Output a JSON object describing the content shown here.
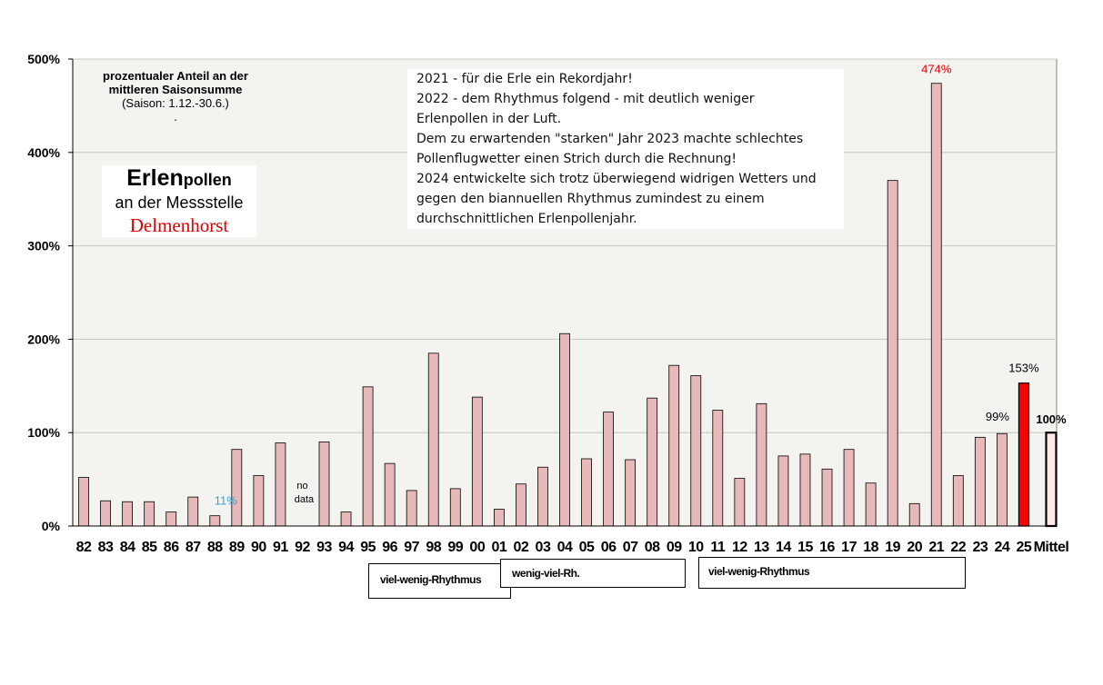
{
  "chart_data": {
    "type": "bar",
    "categories": [
      "82",
      "83",
      "84",
      "85",
      "86",
      "87",
      "88",
      "89",
      "90",
      "91",
      "92",
      "93",
      "94",
      "95",
      "96",
      "97",
      "98",
      "99",
      "00",
      "01",
      "02",
      "03",
      "04",
      "05",
      "06",
      "07",
      "08",
      "09",
      "10",
      "11",
      "12",
      "13",
      "14",
      "15",
      "16",
      "17",
      "18",
      "19",
      "20",
      "21",
      "22",
      "23",
      "24",
      "25",
      "Mittel"
    ],
    "values": [
      52,
      27,
      26,
      26,
      15,
      31,
      11,
      82,
      54,
      89,
      null,
      90,
      15,
      149,
      67,
      38,
      185,
      40,
      138,
      18,
      45,
      63,
      206,
      72,
      122,
      71,
      137,
      172,
      161,
      124,
      51,
      131,
      75,
      77,
      61,
      82,
      46,
      370,
      24,
      474,
      54,
      95,
      99,
      153,
      100
    ],
    "ylim": [
      0,
      500
    ],
    "yticks": [
      "0%",
      "100%",
      "200%",
      "300%",
      "400%",
      "500%"
    ],
    "grid": true,
    "colors": {
      "bar": "#e8b9b9",
      "highlight": "#ff0000",
      "mittel": "#ffe8e8",
      "plot_bg": "#f3f3ef",
      "grid": "#c8c8c0"
    },
    "data_labels": [
      {
        "category": "88",
        "text": "11%",
        "color": "#2aa8d8"
      },
      {
        "category": "24",
        "text": "99%",
        "color": "#000000"
      },
      {
        "category": "25",
        "text": "153%",
        "color": "#000000"
      },
      {
        "category": "21",
        "text": "474%",
        "color": "#e00000"
      },
      {
        "category": "Mittel",
        "text": "100%",
        "color": "#000000"
      }
    ],
    "no_data": {
      "category": "92",
      "line1": "no",
      "line2": "data"
    }
  },
  "info": {
    "line1": "prozentualer Anteil an der",
    "line2": "mittleren Saisonsumme",
    "line3": "(Saison: 1.12.-30.6.)",
    "line4": "."
  },
  "title": {
    "erlen": "Erlen",
    "pollen": "pollen",
    "sub": "an der Messstelle",
    "city": "Delmenhorst"
  },
  "notes": [
    "2021 - für die Erle ein Rekordjahr!",
    "2022 - dem Rhythmus folgend -  mit deutlich weniger",
    "Erlenpollen  in der Luft.",
    "Dem zu erwartenden  \"starken\" Jahr 2023 machte schlechtes",
    "Pollenflugwetter  einen Strich durch die Rechnung!",
    "2024 entwickelte sich trotz überwiegend widrigen Wetters und",
    "gegen den biannuellen Rhythmus zumindest zu einem",
    "durchschnittlichen Erlenpollenjahr."
  ],
  "rhythm": [
    {
      "label": "viel-wenig-Rhythmus"
    },
    {
      "label": "wenig-viel-Rh."
    },
    {
      "label": "viel-wenig-Rhythmus"
    }
  ]
}
